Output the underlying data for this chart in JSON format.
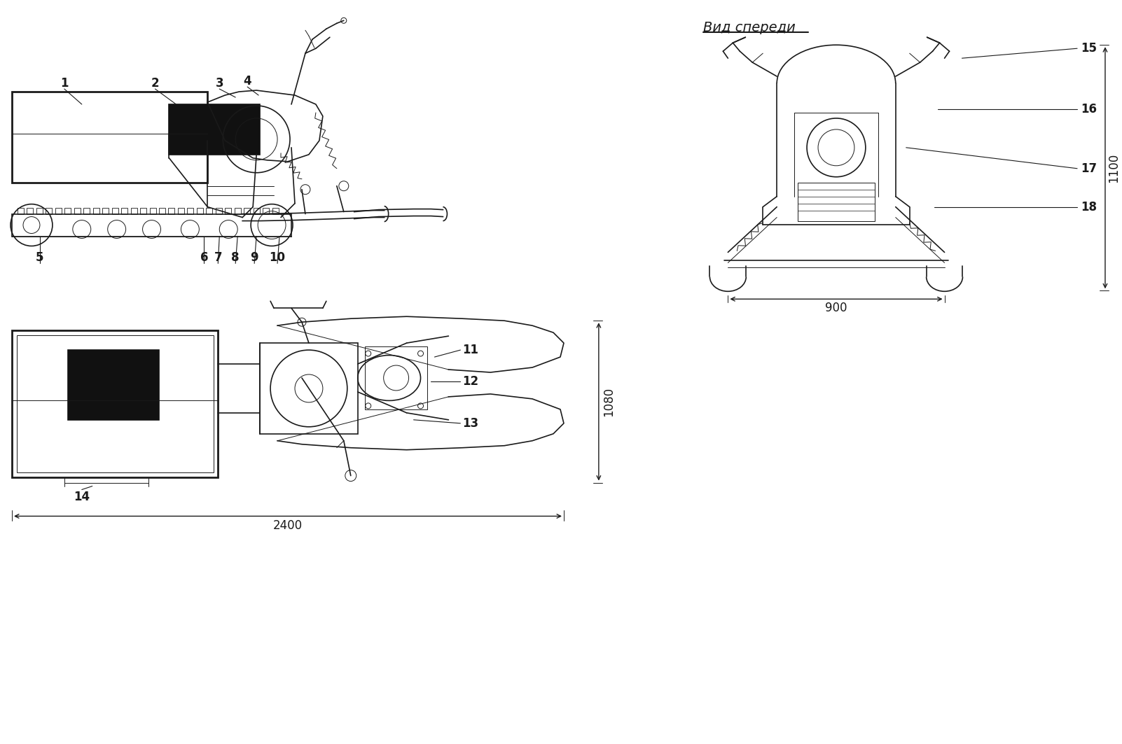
{
  "bg_color": "#f5f5f0",
  "fig_width": 16.02,
  "fig_height": 10.63,
  "view_front_label": "Вид спереди",
  "dim_900": "900",
  "dim_1100": "1100",
  "dim_1080": "1080",
  "dim_2400": "2400"
}
